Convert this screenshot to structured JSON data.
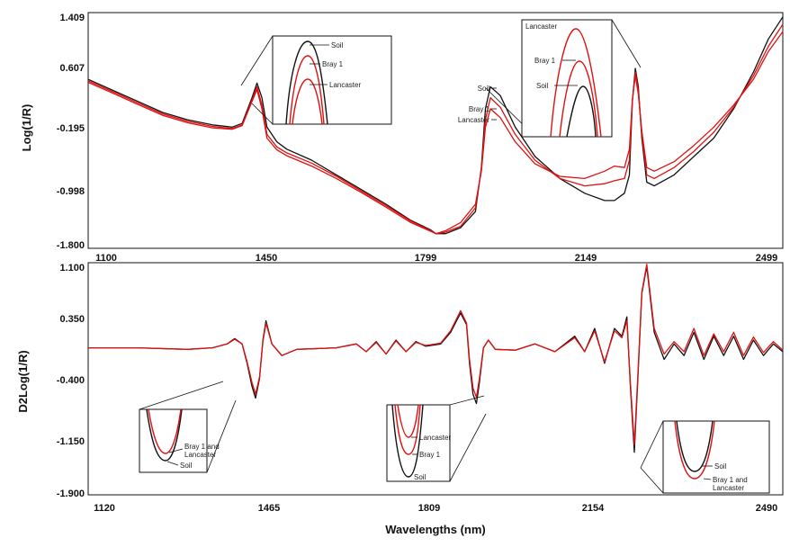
{
  "chart_data": [
    {
      "id": "top",
      "type": "line",
      "ylabel": "Log(1/R)",
      "xlabel": "",
      "x_ticks": [
        "1100",
        "1450",
        "1799",
        "2149",
        "2499"
      ],
      "y_ticks": [
        "1.409",
        "0.607",
        "-0.195",
        "-0.998",
        "-1.800"
      ],
      "xlim": [
        1100,
        2499
      ],
      "ylim": [
        -1.8,
        1.409
      ],
      "series": [
        {
          "name": "Soil",
          "color": "#111111",
          "x": [
            1100,
            1150,
            1200,
            1250,
            1300,
            1350,
            1390,
            1410,
            1430,
            1440,
            1450,
            1460,
            1480,
            1500,
            1550,
            1600,
            1650,
            1700,
            1750,
            1790,
            1800,
            1820,
            1850,
            1880,
            1892,
            1900,
            1910,
            1930,
            1960,
            2000,
            2050,
            2100,
            2140,
            2160,
            2180,
            2190,
            2196,
            2202,
            2208,
            2215,
            2225,
            2240,
            2280,
            2320,
            2360,
            2400,
            2440,
            2470,
            2499
          ],
          "y": [
            0.5,
            0.35,
            0.2,
            0.05,
            -0.05,
            -0.12,
            -0.15,
            -0.1,
            0.25,
            0.45,
            0.25,
            -0.15,
            -0.35,
            -0.45,
            -0.6,
            -0.8,
            -1.0,
            -1.2,
            -1.42,
            -1.55,
            -1.6,
            -1.6,
            -1.52,
            -1.3,
            -0.7,
            0.1,
            0.4,
            0.28,
            -0.15,
            -0.55,
            -0.85,
            -1.05,
            -1.15,
            -1.15,
            -1.05,
            -0.8,
            0.2,
            0.65,
            0.4,
            -0.3,
            -0.9,
            -0.95,
            -0.8,
            -0.55,
            -0.3,
            0.1,
            0.6,
            1.05,
            1.35
          ]
        },
        {
          "name": "Bray 1",
          "color": "#e01010",
          "x": [
            1100,
            1150,
            1200,
            1250,
            1300,
            1350,
            1390,
            1410,
            1430,
            1440,
            1450,
            1460,
            1480,
            1500,
            1550,
            1600,
            1650,
            1700,
            1750,
            1790,
            1800,
            1820,
            1850,
            1880,
            1892,
            1900,
            1910,
            1930,
            1960,
            2000,
            2050,
            2100,
            2140,
            2160,
            2180,
            2190,
            2196,
            2202,
            2208,
            2215,
            2225,
            2240,
            2280,
            2320,
            2360,
            2400,
            2440,
            2470,
            2499
          ],
          "y": [
            0.48,
            0.33,
            0.18,
            0.03,
            -0.07,
            -0.14,
            -0.17,
            -0.12,
            0.22,
            0.4,
            0.15,
            -0.25,
            -0.42,
            -0.5,
            -0.64,
            -0.82,
            -1.02,
            -1.22,
            -1.43,
            -1.56,
            -1.6,
            -1.58,
            -1.5,
            -1.25,
            -0.72,
            -0.05,
            0.25,
            0.12,
            -0.25,
            -0.6,
            -0.85,
            -0.95,
            -0.92,
            -0.88,
            -0.85,
            -0.6,
            0.2,
            0.6,
            0.35,
            -0.25,
            -0.8,
            -0.85,
            -0.7,
            -0.48,
            -0.22,
            0.12,
            0.55,
            0.95,
            1.25
          ]
        },
        {
          "name": "Lancaster",
          "color": "#e01010",
          "x": [
            1100,
            1150,
            1200,
            1250,
            1300,
            1350,
            1390,
            1410,
            1430,
            1440,
            1450,
            1460,
            1480,
            1500,
            1550,
            1600,
            1650,
            1700,
            1750,
            1790,
            1800,
            1820,
            1850,
            1880,
            1892,
            1900,
            1910,
            1930,
            1960,
            2000,
            2050,
            2100,
            2140,
            2160,
            2180,
            2190,
            2196,
            2202,
            2208,
            2215,
            2225,
            2240,
            2280,
            2320,
            2360,
            2400,
            2440,
            2470,
            2499
          ],
          "y": [
            0.46,
            0.31,
            0.16,
            0.01,
            -0.09,
            -0.16,
            -0.18,
            -0.13,
            0.2,
            0.36,
            0.1,
            -0.3,
            -0.46,
            -0.54,
            -0.68,
            -0.85,
            -1.04,
            -1.24,
            -1.45,
            -1.57,
            -1.6,
            -1.56,
            -1.45,
            -1.2,
            -0.75,
            -0.15,
            0.1,
            -0.02,
            -0.35,
            -0.65,
            -0.82,
            -0.85,
            -0.75,
            -0.68,
            -0.7,
            -0.45,
            0.22,
            0.55,
            0.3,
            -0.2,
            -0.7,
            -0.75,
            -0.62,
            -0.4,
            -0.15,
            0.15,
            0.5,
            0.88,
            1.15
          ]
        }
      ],
      "annotations": [
        "Soil",
        "Bray 1",
        "Lancaster"
      ],
      "insets": [
        {
          "labels": [
            "Soil",
            "Bray 1",
            "Lancaster"
          ]
        },
        {
          "labels": [
            "Lancaster",
            "Bray 1",
            "Soil"
          ]
        }
      ]
    },
    {
      "id": "bottom",
      "type": "line",
      "ylabel": "D2Log(1/R)",
      "xlabel": "Wavelengths (nm)",
      "x_ticks": [
        "1120",
        "1465",
        "1809",
        "2154",
        "2490"
      ],
      "y_ticks": [
        "1.100",
        "0.350",
        "-0.400",
        "-1.150",
        "-1.900"
      ],
      "xlim": [
        1100,
        2499
      ],
      "ylim": [
        -1.9,
        1.1
      ],
      "series": [
        {
          "name": "Soil",
          "color": "#111111",
          "x": [
            1100,
            1200,
            1300,
            1350,
            1380,
            1395,
            1410,
            1420,
            1430,
            1437,
            1445,
            1452,
            1458,
            1470,
            1490,
            1520,
            1600,
            1640,
            1660,
            1680,
            1700,
            1720,
            1740,
            1760,
            1780,
            1810,
            1830,
            1850,
            1862,
            1868,
            1875,
            1882,
            1888,
            1896,
            1906,
            1920,
            1960,
            2000,
            2040,
            2080,
            2100,
            2120,
            2140,
            2160,
            2175,
            2185,
            2192,
            2200,
            2207,
            2215,
            2225,
            2240,
            2260,
            2280,
            2300,
            2320,
            2340,
            2360,
            2380,
            2400,
            2420,
            2440,
            2460,
            2480,
            2499
          ],
          "y": [
            0,
            0,
            -0.02,
            0,
            0.05,
            0.12,
            0.05,
            -0.2,
            -0.5,
            -0.65,
            -0.4,
            0.1,
            0.35,
            0.05,
            -0.1,
            -0.02,
            0,
            0.05,
            -0.05,
            0.08,
            -0.08,
            0.1,
            -0.05,
            0.08,
            0.02,
            0.05,
            0.2,
            0.45,
            0.3,
            -0.2,
            -0.6,
            -0.72,
            -0.45,
            0,
            0.1,
            -0.02,
            -0.03,
            0.05,
            -0.05,
            0.15,
            -0.05,
            0.25,
            -0.2,
            0.25,
            0.15,
            0.4,
            -0.5,
            -1.35,
            -0.4,
            0.7,
            1.05,
            0.2,
            -0.15,
            0.05,
            -0.1,
            0.2,
            -0.15,
            0.15,
            -0.1,
            0.15,
            -0.15,
            0.1,
            -0.1,
            0.05,
            -0.05
          ]
        },
        {
          "name": "Bray 1 and Lancaster",
          "color": "#e01010",
          "x": [
            1100,
            1200,
            1300,
            1350,
            1380,
            1395,
            1410,
            1420,
            1430,
            1437,
            1445,
            1452,
            1458,
            1470,
            1490,
            1520,
            1600,
            1640,
            1660,
            1680,
            1700,
            1720,
            1740,
            1760,
            1780,
            1810,
            1830,
            1850,
            1862,
            1868,
            1875,
            1882,
            1888,
            1896,
            1906,
            1920,
            1960,
            2000,
            2040,
            2080,
            2100,
            2120,
            2140,
            2160,
            2175,
            2185,
            2192,
            2200,
            2207,
            2215,
            2225,
            2240,
            2260,
            2280,
            2300,
            2320,
            2340,
            2360,
            2380,
            2400,
            2420,
            2440,
            2460,
            2480,
            2499
          ],
          "y": [
            0,
            0,
            -0.02,
            0,
            0.05,
            0.11,
            0.05,
            -0.18,
            -0.45,
            -0.6,
            -0.38,
            0.08,
            0.32,
            0.05,
            -0.1,
            -0.02,
            0,
            0.05,
            -0.05,
            0.07,
            -0.08,
            0.09,
            -0.05,
            0.07,
            0.03,
            0.06,
            0.22,
            0.48,
            0.32,
            -0.15,
            -0.52,
            -0.64,
            -0.4,
            0,
            0.1,
            -0.02,
            -0.03,
            0.05,
            -0.05,
            0.13,
            -0.05,
            0.22,
            -0.18,
            0.22,
            0.13,
            0.35,
            -0.45,
            -1.25,
            -0.35,
            0.72,
            1.08,
            0.25,
            -0.08,
            0.08,
            -0.05,
            0.25,
            -0.1,
            0.18,
            -0.05,
            0.2,
            -0.1,
            0.14,
            -0.06,
            0.08,
            -0.03
          ]
        }
      ],
      "insets": [
        {
          "labels": [
            "Bray 1 and\nLancaster",
            "Soil"
          ]
        },
        {
          "labels": [
            "Lancaster",
            "Bray 1",
            "Soil"
          ]
        },
        {
          "labels": [
            "Soil",
            "Bray 1 and\nLancaster"
          ]
        }
      ]
    }
  ]
}
